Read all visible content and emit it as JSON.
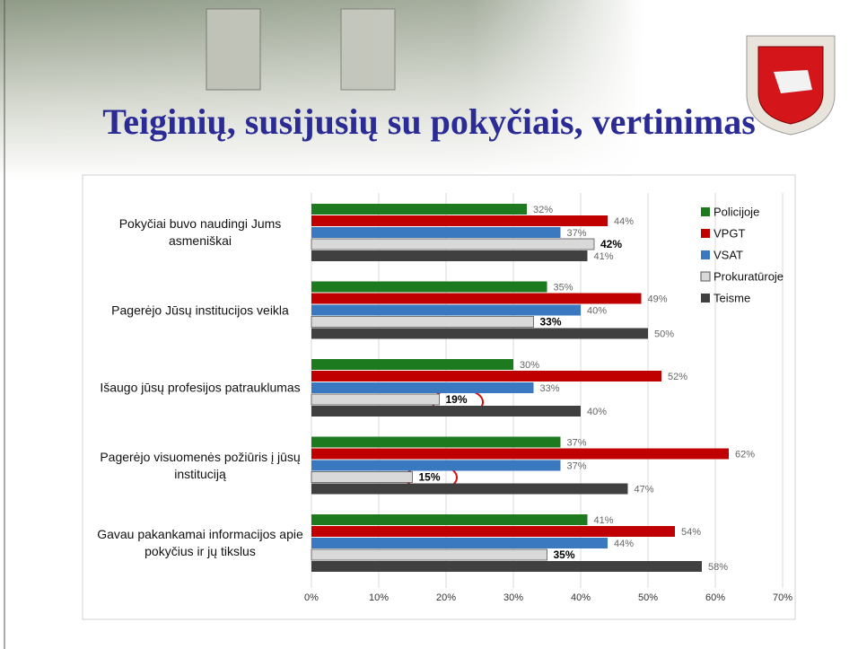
{
  "title": "Teiginių, susijusių su pokyčiais, vertinimas",
  "chart_data": {
    "type": "bar",
    "orientation": "horizontal",
    "categories": [
      "Pokyčiai buvo naudingi Jums asmeniškai",
      "Pagerėjo Jūsų institucijos veikla",
      "Išaugo jūsų profesijos patrauklumas",
      "Pagerėjo visuomenės požiūris į jūsų instituciją",
      "Gavau pakankamai informacijos apie pokyčius ir jų tikslus"
    ],
    "series": [
      {
        "name": "Policijoje",
        "color": "#1e7a1e",
        "values": [
          32,
          35,
          30,
          37,
          41
        ],
        "value_labels": [
          "32%",
          "35%",
          "30%",
          "37%",
          "41%"
        ]
      },
      {
        "name": "VPGT",
        "color": "#c00000",
        "values": [
          44,
          49,
          52,
          62,
          54
        ],
        "value_labels": [
          "44%",
          "49%",
          "52%",
          "62%",
          "54%"
        ]
      },
      {
        "name": "VSAT",
        "color": "#3a78c0",
        "values": [
          37,
          40,
          33,
          37,
          44
        ],
        "value_labels": [
          "37%",
          "40%",
          "33%",
          "37%",
          "44%"
        ]
      },
      {
        "name": "Prokuratūroje",
        "color": "#d9d9d9",
        "values": [
          42,
          33,
          19,
          15,
          35
        ],
        "value_labels": [
          "42%",
          "33%",
          "19%",
          "15%",
          "35%"
        ]
      },
      {
        "name": "Teisme",
        "color": "#404040",
        "values": [
          41,
          50,
          40,
          47,
          58
        ],
        "value_labels": [
          "41%",
          "50%",
          "40%",
          "47%",
          "58%"
        ]
      }
    ],
    "xlim": [
      0,
      70
    ],
    "xticks": [
      {
        "value": 0,
        "label": "0%"
      },
      {
        "value": 10,
        "label": "10%"
      },
      {
        "value": 20,
        "label": "20%"
      },
      {
        "value": 30,
        "label": "30%"
      },
      {
        "value": 40,
        "label": "40%"
      },
      {
        "value": 50,
        "label": "50%"
      },
      {
        "value": 60,
        "label": "60%"
      },
      {
        "value": 70,
        "label": "70%"
      }
    ],
    "grid": true,
    "legend": "top-right"
  }
}
